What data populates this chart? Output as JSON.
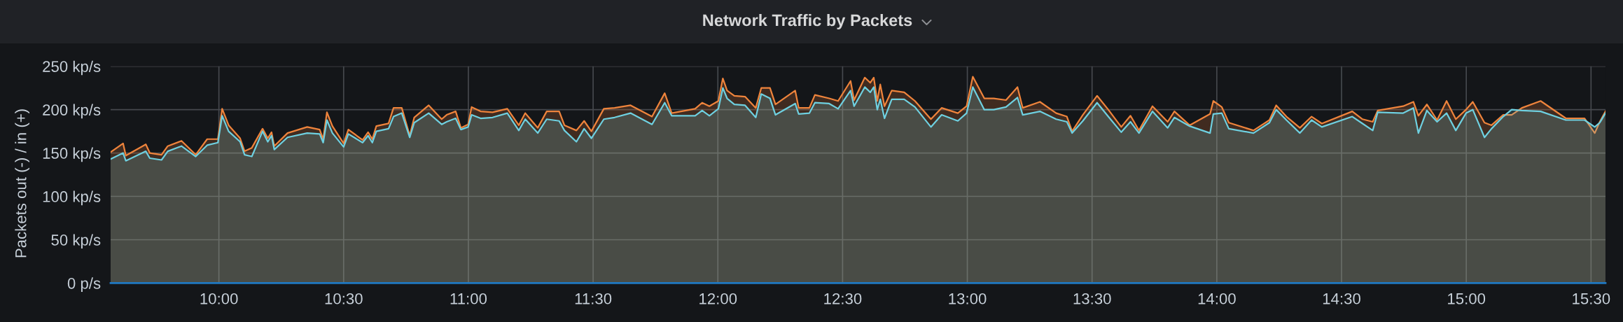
{
  "chart_data": {
    "type": "area",
    "title": "Network Traffic by Packets",
    "ylabel": "Packets out (-) / in (+)",
    "xlim": [
      9.566,
      15.558
    ],
    "xticks": [
      {
        "value": 10,
        "label": "10:00"
      },
      {
        "value": 10.5,
        "label": "10:30"
      },
      {
        "value": 11,
        "label": "11:00"
      },
      {
        "value": 11.5,
        "label": "11:30"
      },
      {
        "value": 12,
        "label": "12:00"
      },
      {
        "value": 12.5,
        "label": "12:30"
      },
      {
        "value": 13,
        "label": "13:00"
      },
      {
        "value": 13.5,
        "label": "13:30"
      },
      {
        "value": 14,
        "label": "14:00"
      },
      {
        "value": 14.5,
        "label": "14:30"
      },
      {
        "value": 15,
        "label": "15:00"
      },
      {
        "value": 15.5,
        "label": "15:30"
      }
    ],
    "ylim": [
      0,
      250
    ],
    "yticks": [
      {
        "value": 0,
        "label": "0 p/s"
      },
      {
        "value": 50,
        "label": "50 kp/s"
      },
      {
        "value": 100,
        "label": "100 kp/s"
      },
      {
        "value": 150,
        "label": "150 kp/s"
      },
      {
        "value": 200,
        "label": "200 kp/s"
      },
      {
        "value": 250,
        "label": "250 kp/s"
      }
    ],
    "grid": true,
    "series": [
      {
        "color": "#ef843c",
        "x": [
          9.566,
          9.616,
          9.627,
          9.707,
          9.723,
          9.77,
          9.795,
          9.85,
          9.907,
          9.953,
          9.996,
          10.013,
          10.039,
          10.085,
          10.103,
          10.132,
          10.175,
          10.196,
          10.211,
          10.222,
          10.275,
          10.354,
          10.404,
          10.418,
          10.433,
          10.455,
          10.5,
          10.519,
          10.576,
          10.598,
          10.615,
          10.631,
          10.68,
          10.7,
          10.733,
          10.765,
          10.783,
          10.841,
          10.893,
          10.913,
          10.949,
          10.97,
          10.999,
          11.013,
          11.049,
          11.097,
          11.156,
          11.202,
          11.228,
          11.278,
          11.314,
          11.364,
          11.385,
          11.433,
          11.464,
          11.493,
          11.543,
          11.586,
          11.65,
          11.736,
          11.787,
          11.815,
          11.909,
          11.937,
          11.966,
          12.002,
          12.02,
          12.037,
          12.066,
          12.109,
          12.152,
          12.174,
          12.209,
          12.231,
          12.31,
          12.324,
          12.367,
          12.389,
          12.446,
          12.482,
          12.532,
          12.546,
          12.589,
          12.611,
          12.625,
          12.639,
          12.651,
          12.668,
          12.697,
          12.747,
          12.79,
          12.854,
          12.897,
          12.962,
          12.997,
          13.022,
          13.068,
          13.106,
          13.155,
          13.201,
          13.222,
          13.291,
          13.356,
          13.399,
          13.42,
          13.463,
          13.52,
          13.565,
          13.617,
          13.654,
          13.688,
          13.742,
          13.803,
          13.83,
          13.891,
          13.973,
          13.986,
          14.02,
          14.048,
          14.147,
          14.211,
          14.238,
          14.279,
          14.333,
          14.38,
          14.421,
          14.543,
          14.584,
          14.625,
          14.645,
          14.747,
          14.788,
          14.808,
          14.842,
          14.883,
          14.921,
          14.958,
          14.999,
          15.026,
          15.073,
          15.101,
          15.148,
          15.182,
          15.223,
          15.298,
          15.399,
          15.474,
          15.515,
          15.535,
          15.558
        ],
        "values": [
          151,
          161,
          147,
          160,
          150,
          148,
          158,
          164,
          148,
          166,
          166,
          201,
          182,
          167,
          152,
          156,
          178,
          167,
          174,
          158,
          173,
          180,
          177,
          166,
          197,
          181,
          161,
          177,
          165,
          174,
          166,
          181,
          184,
          202,
          202,
          170,
          191,
          205,
          189,
          194,
          198,
          179,
          183,
          203,
          198,
          197,
          201,
          182,
          196,
          179,
          198,
          198,
          182,
          176,
          187,
          175,
          201,
          202,
          205,
          192,
          219,
          196,
          201,
          208,
          204,
          210,
          236,
          222,
          216,
          215,
          202,
          225,
          225,
          206,
          222,
          202,
          202,
          217,
          213,
          210,
          233,
          211,
          237,
          231,
          237,
          210,
          229,
          204,
          222,
          220,
          210,
          189,
          202,
          196,
          204,
          238,
          213,
          213,
          211,
          226,
          202,
          209,
          196,
          192,
          175,
          194,
          216,
          200,
          180,
          193,
          176,
          204,
          186,
          198,
          182,
          195,
          210,
          203,
          185,
          176,
          188,
          205,
          192,
          179,
          192,
          184,
          198,
          189,
          186,
          199,
          204,
          209,
          193,
          206,
          188,
          210,
          189,
          200,
          209,
          185,
          182,
          194,
          194,
          202,
          210,
          190,
          190,
          173,
          186,
          198
        ]
      },
      {
        "color": "#6ed0e0",
        "x": [
          9.566,
          9.616,
          9.627,
          9.707,
          9.723,
          9.77,
          9.795,
          9.85,
          9.907,
          9.953,
          9.996,
          10.013,
          10.039,
          10.085,
          10.103,
          10.132,
          10.175,
          10.196,
          10.211,
          10.222,
          10.275,
          10.354,
          10.404,
          10.418,
          10.433,
          10.455,
          10.5,
          10.519,
          10.576,
          10.598,
          10.615,
          10.631,
          10.68,
          10.7,
          10.733,
          10.765,
          10.783,
          10.841,
          10.893,
          10.913,
          10.949,
          10.97,
          10.999,
          11.013,
          11.049,
          11.097,
          11.156,
          11.202,
          11.228,
          11.278,
          11.314,
          11.364,
          11.385,
          11.433,
          11.464,
          11.493,
          11.543,
          11.586,
          11.65,
          11.736,
          11.787,
          11.815,
          11.909,
          11.937,
          11.966,
          12.002,
          12.02,
          12.037,
          12.066,
          12.109,
          12.152,
          12.174,
          12.209,
          12.231,
          12.31,
          12.324,
          12.367,
          12.389,
          12.446,
          12.482,
          12.532,
          12.546,
          12.589,
          12.611,
          12.625,
          12.639,
          12.651,
          12.668,
          12.697,
          12.747,
          12.79,
          12.854,
          12.897,
          12.962,
          12.997,
          13.022,
          13.068,
          13.106,
          13.155,
          13.201,
          13.222,
          13.291,
          13.356,
          13.399,
          13.42,
          13.463,
          13.52,
          13.565,
          13.617,
          13.654,
          13.688,
          13.742,
          13.803,
          13.83,
          13.891,
          13.973,
          13.986,
          14.02,
          14.048,
          14.147,
          14.211,
          14.238,
          14.279,
          14.333,
          14.38,
          14.421,
          14.543,
          14.584,
          14.625,
          14.645,
          14.747,
          14.788,
          14.808,
          14.842,
          14.883,
          14.921,
          14.958,
          14.999,
          15.026,
          15.073,
          15.101,
          15.148,
          15.182,
          15.223,
          15.298,
          15.399,
          15.474,
          15.515,
          15.535,
          15.558
        ],
        "values": [
          143,
          150,
          141,
          152,
          144,
          142,
          152,
          158,
          146,
          159,
          162,
          193,
          175,
          163,
          148,
          146,
          175,
          163,
          170,
          154,
          168,
          173,
          172,
          162,
          188,
          173,
          157,
          172,
          162,
          170,
          162,
          175,
          178,
          192,
          196,
          168,
          185,
          196,
          183,
          186,
          190,
          177,
          180,
          194,
          190,
          191,
          196,
          176,
          189,
          173,
          189,
          187,
          176,
          163,
          178,
          167,
          189,
          191,
          196,
          183,
          208,
          193,
          193,
          199,
          193,
          201,
          225,
          213,
          206,
          205,
          191,
          218,
          213,
          194,
          207,
          195,
          196,
          208,
          207,
          201,
          222,
          204,
          226,
          220,
          226,
          200,
          212,
          190,
          212,
          212,
          203,
          180,
          194,
          187,
          196,
          226,
          200,
          200,
          203,
          214,
          194,
          198,
          189,
          186,
          173,
          187,
          208,
          192,
          174,
          186,
          173,
          198,
          179,
          191,
          181,
          173,
          195,
          196,
          178,
          173,
          185,
          200,
          188,
          173,
          188,
          180,
          192,
          184,
          176,
          197,
          196,
          202,
          173,
          199,
          186,
          196,
          176,
          196,
          200,
          168,
          178,
          192,
          200,
          199,
          198,
          188,
          188,
          180,
          185,
          196
        ]
      },
      {
        "type": "line",
        "color": "#1f78c1",
        "x": [
          9.566,
          15.558
        ],
        "values": [
          0,
          0
        ]
      }
    ]
  }
}
